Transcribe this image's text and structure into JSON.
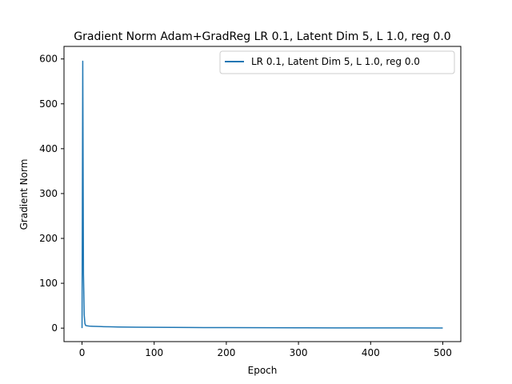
{
  "chart_data": {
    "type": "line",
    "title": "Gradient Norm Adam+GradReg LR 0.1, Latent Dim 5, L 1.0, reg 0.0",
    "xlabel": "Epoch",
    "ylabel": "Gradient Norm",
    "xlim": [
      -25,
      525
    ],
    "ylim": [
      -30,
      628
    ],
    "xticks": [
      0,
      100,
      200,
      300,
      400,
      500
    ],
    "yticks": [
      0,
      100,
      200,
      300,
      400,
      500,
      600
    ],
    "grid": false,
    "legend_position": "top-right",
    "series": [
      {
        "name": "LR 0.1, Latent Dim 5, L 1.0, reg 0.0",
        "color": "#1f77b4",
        "x": [
          0,
          1,
          2,
          3,
          4,
          5,
          6,
          8,
          10,
          15,
          20,
          30,
          40,
          50,
          75,
          100,
          150,
          200,
          250,
          300,
          350,
          400,
          450,
          500
        ],
        "y": [
          0,
          595,
          120,
          30,
          10,
          6,
          5.5,
          5,
          4.6,
          4.2,
          3.8,
          3.3,
          2.9,
          2.6,
          2.1,
          1.8,
          1.4,
          1.1,
          0.9,
          0.75,
          0.6,
          0.5,
          0.45,
          0.4
        ]
      }
    ]
  }
}
